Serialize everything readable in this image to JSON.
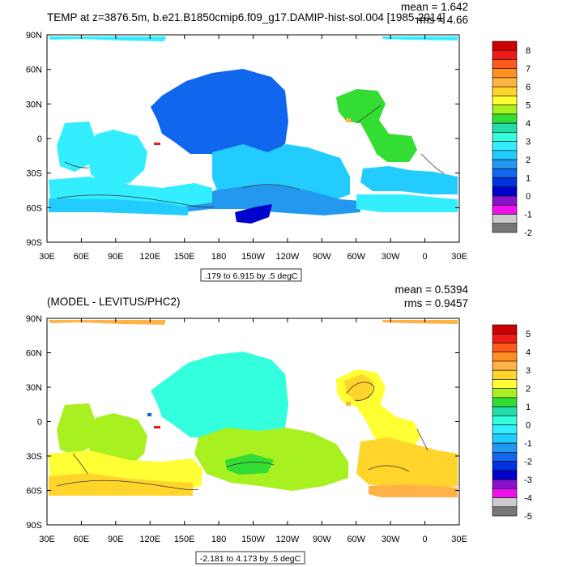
{
  "panels": [
    {
      "title": "TEMP at z=3876.5m, b.e21.B1850cmip6.f09_g17.DAMIP-hist-sol.004 [1985-2014]",
      "stats": {
        "mean": "mean = 1.642",
        "rms": "rms = 4.66"
      },
      "range_label": ".179 to 6.915 by .5 degC",
      "colorbar": {
        "labels": [
          "8",
          "7",
          "6",
          "5",
          "4",
          "3",
          "2",
          "1",
          "0",
          "-1",
          "-2"
        ],
        "colors": [
          "#cc0000",
          "#ee1a1a",
          "#ff5a1a",
          "#ff8f1f",
          "#ffb347",
          "#ffd52b",
          "#ffff33",
          "#a8f020",
          "#33dd33",
          "#22ddaa",
          "#33ffdd",
          "#33eeff",
          "#22ccff",
          "#2299ee",
          "#1166ee",
          "#0033dd",
          "#0000cc",
          "#8811cc",
          "#ee11ee",
          "#cccccc",
          "#777777"
        ]
      }
    },
    {
      "title": "(MODEL - LEVITUS/PHC2)",
      "stats": {
        "mean": "mean = 0.5394",
        "rms": "rms = 0.9457"
      },
      "range_label": "-2.181 to 4.173 by .5 degC",
      "colorbar": {
        "labels": [
          "5",
          "4",
          "3",
          "2",
          "1",
          "0",
          "-1",
          "-2",
          "-3",
          "-4",
          "-5"
        ],
        "colors": [
          "#cc0000",
          "#ee1a1a",
          "#ff5a1a",
          "#ff8f1f",
          "#ffb347",
          "#ffd52b",
          "#ffff33",
          "#a8f020",
          "#33dd33",
          "#22ddaa",
          "#33ffdd",
          "#33eeff",
          "#22ccff",
          "#2299ee",
          "#1166ee",
          "#0033dd",
          "#0000cc",
          "#8811cc",
          "#ee11ee",
          "#cccccc",
          "#777777"
        ]
      }
    }
  ],
  "chart_data": [
    {
      "type": "heatmap",
      "title": "TEMP at z=3876.5m, b.e21.B1850cmip6.f09_g17.DAMIP-hist-sol.004 [1985-2014]",
      "xlabel": "",
      "ylabel": "",
      "x_ticks": [
        "30E",
        "60E",
        "90E",
        "120E",
        "150E",
        "180",
        "150W",
        "120W",
        "90W",
        "60W",
        "30W",
        "0",
        "30E"
      ],
      "y_ticks": [
        "90N",
        "60N",
        "30N",
        "0",
        "30S",
        "60S",
        "90S"
      ],
      "xlim": [
        30,
        390
      ],
      "ylim": [
        -90,
        90
      ],
      "mean": 1.642,
      "rms": 4.66,
      "contour_range": [
        0.179,
        6.915
      ],
      "contour_interval": 0.5,
      "units": "degC",
      "colorbar_range": [
        -2,
        8
      ],
      "regions": [
        {
          "lon": [
            165,
            225
          ],
          "lat": [
            -40,
            55
          ],
          "value": 1.25
        },
        {
          "lon": [
            210,
            280
          ],
          "lat": [
            -45,
            20
          ],
          "value": 2.0
        },
        {
          "lon": [
            290,
            340
          ],
          "lat": [
            -20,
            40
          ],
          "value": 3.75
        },
        {
          "lon": [
            60,
            130
          ],
          "lat": [
            -30,
            10
          ],
          "value": 2.25
        },
        {
          "lon": [
            40,
            390
          ],
          "lat": [
            -70,
            -45
          ],
          "value": 2.25
        },
        {
          "lon": [
            220,
            245
          ],
          "lat": [
            -75,
            -65
          ],
          "value": 0.25
        }
      ]
    },
    {
      "type": "heatmap",
      "title": "(MODEL - LEVITUS/PHC2)",
      "xlabel": "",
      "ylabel": "",
      "x_ticks": [
        "30E",
        "60E",
        "90E",
        "120E",
        "150E",
        "180",
        "150W",
        "120W",
        "90W",
        "60W",
        "30W",
        "0",
        "30E"
      ],
      "y_ticks": [
        "90N",
        "60N",
        "30N",
        "0",
        "30S",
        "60S",
        "90S"
      ],
      "xlim": [
        30,
        390
      ],
      "ylim": [
        -90,
        90
      ],
      "mean": 0.5394,
      "rms": 0.9457,
      "contour_range": [
        -2.181,
        4.173
      ],
      "contour_interval": 0.5,
      "units": "degC",
      "colorbar_range": [
        -5,
        5
      ],
      "regions": [
        {
          "lon": [
            165,
            225
          ],
          "lat": [
            -20,
            55
          ],
          "value": -0.25
        },
        {
          "lon": [
            220,
            280
          ],
          "lat": [
            -50,
            -20
          ],
          "value": 0.75
        },
        {
          "lon": [
            60,
            130
          ],
          "lat": [
            -30,
            10
          ],
          "value": 0.75
        },
        {
          "lon": [
            300,
            350
          ],
          "lat": [
            -50,
            40
          ],
          "value": 1.75
        },
        {
          "lon": [
            35,
            200
          ],
          "lat": [
            -70,
            -35
          ],
          "value": 2.25
        },
        {
          "lon": [
            30,
            200
          ],
          "lat": [
            85,
            90
          ],
          "value": 2.5
        }
      ]
    }
  ]
}
